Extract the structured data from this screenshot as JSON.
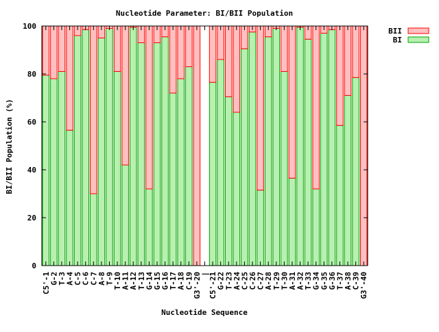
{
  "chart_data": {
    "type": "bar",
    "stacked": true,
    "title": "Nucleotide Parameter: BI/BII Population",
    "xlabel": "Nucleotide Sequence",
    "ylabel": "BI/BII Population (%)",
    "ylim": [
      0,
      100
    ],
    "yticks": [
      "0",
      "20",
      "40",
      "60",
      "80",
      "100"
    ],
    "grid": false,
    "legend_position": "top-right",
    "categories": [
      "C5'-1",
      "G-2",
      "T-3",
      "A-4",
      "C-5",
      "C-6",
      "C-7",
      "A-8",
      "T-9",
      "T-10",
      "A-11",
      "A-12",
      "T-13",
      "G-14",
      "G-15",
      "G-16",
      "T-17",
      "A-18",
      "C-19",
      "G3'-20",
      "|",
      "C5'-21",
      "G-22",
      "T-23",
      "A-24",
      "C-25",
      "C-26",
      "C-27",
      "A-28",
      "T-29",
      "T-30",
      "A-31",
      "A-32",
      "T-33",
      "G-34",
      "G-35",
      "G-36",
      "T-37",
      "A-38",
      "C-39",
      "G3'-40"
    ],
    "series": [
      {
        "name": "BI",
        "color": "#b8f0b0",
        "stroke": "#00a000",
        "values": [
          79.5,
          78,
          81,
          56.5,
          96,
          98.5,
          30,
          95,
          99,
          81,
          42,
          99.5,
          93,
          32,
          93,
          95.5,
          72,
          78,
          83,
          0,
          0,
          76.5,
          86,
          70.5,
          64,
          90.5,
          97.5,
          31.5,
          95.5,
          99,
          81,
          36.5,
          99.5,
          94.5,
          32,
          97,
          98.5,
          58.5,
          71,
          78.5,
          0
        ]
      },
      {
        "name": "BII",
        "color": "#ffc0c0",
        "stroke": "#ff0000",
        "values": [
          20.5,
          22,
          19,
          43.5,
          4,
          1.5,
          70,
          5,
          1,
          19,
          58,
          0.5,
          7,
          68,
          7,
          4.5,
          28,
          22,
          17,
          100,
          0,
          23.5,
          14,
          29.5,
          36,
          9.5,
          2.5,
          68.5,
          4.5,
          1,
          19,
          63.5,
          0.5,
          5.5,
          68,
          3,
          1.5,
          41.5,
          29,
          21.5,
          100
        ]
      }
    ]
  }
}
